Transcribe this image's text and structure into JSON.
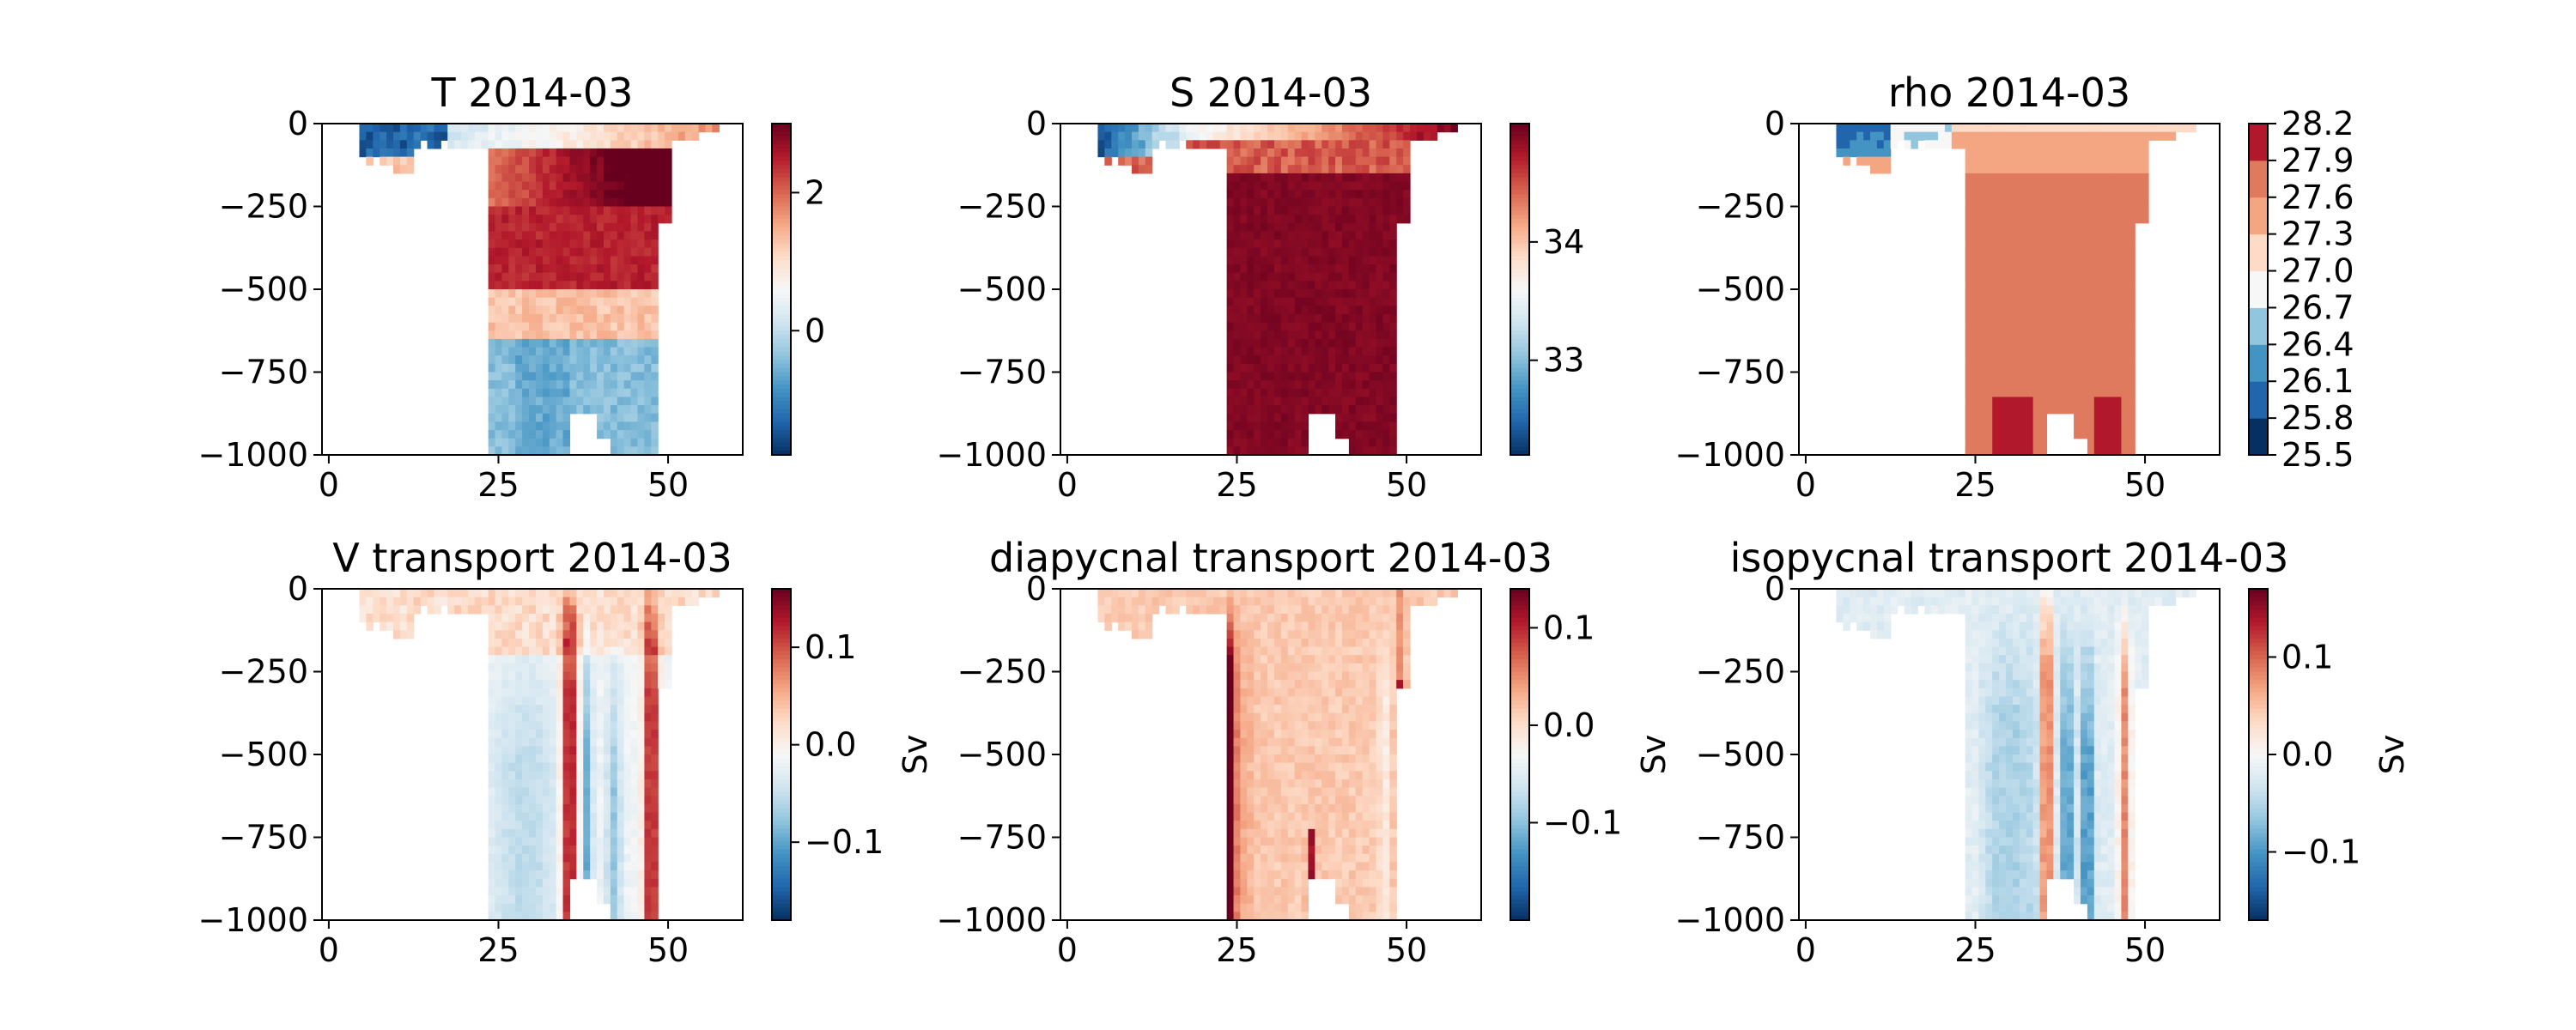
{
  "figure": {
    "background": "#ffffff"
  },
  "chart_data": [
    {
      "type": "heatmap",
      "title": "T 2014-03",
      "xlabel": "",
      "ylabel": "",
      "xlim": [
        -1,
        61
      ],
      "ylim": [
        -1000,
        0
      ],
      "xticks": [
        0,
        25,
        50
      ],
      "yticks": [
        0,
        -250,
        -500,
        -750,
        -1000
      ],
      "xtick_labels": [
        "0",
        "25",
        "50"
      ],
      "ytick_labels": [
        "0",
        "−250",
        "−500",
        "−750",
        "−1000"
      ],
      "colorbar": {
        "min": -1.8,
        "max": 3.0,
        "ticks": [
          0,
          2
        ],
        "tick_labels": [
          "0",
          "2"
        ],
        "label": "",
        "levels": null
      },
      "field": {
        "kind": "T",
        "x_start": 5,
        "x_end": 57
      }
    },
    {
      "type": "heatmap",
      "title": "S 2014-03",
      "xlabel": "",
      "ylabel": "",
      "xlim": [
        -1,
        61
      ],
      "ylim": [
        -1000,
        0
      ],
      "xticks": [
        0,
        25,
        50
      ],
      "yticks": [
        0,
        -250,
        -500,
        -750,
        -1000
      ],
      "xtick_labels": [
        "0",
        "25",
        "50"
      ],
      "ytick_labels": [
        "0",
        "−250",
        "−500",
        "−750",
        "−1000"
      ],
      "colorbar": {
        "min": 32.2,
        "max": 35.0,
        "ticks": [
          33,
          34
        ],
        "tick_labels": [
          "33",
          "34"
        ],
        "label": "",
        "levels": null
      },
      "field": {
        "kind": "S",
        "x_start": 5,
        "x_end": 57
      }
    },
    {
      "type": "heatmap",
      "title": "rho 2014-03",
      "xlabel": "",
      "ylabel": "",
      "xlim": [
        -1,
        61
      ],
      "ylim": [
        -1000,
        0
      ],
      "xticks": [
        0,
        25,
        50
      ],
      "yticks": [
        0,
        -250,
        -500,
        -750,
        -1000
      ],
      "xtick_labels": [
        "0",
        "25",
        "50"
      ],
      "ytick_labels": [
        "0",
        "−250",
        "−500",
        "−750",
        "−1000"
      ],
      "colorbar": {
        "min": 25.5,
        "max": 28.2,
        "ticks": [
          25.5,
          25.8,
          26.1,
          26.4,
          26.7,
          27.0,
          27.3,
          27.6,
          27.9,
          28.2
        ],
        "tick_labels": [
          "25.5",
          "25.8",
          "26.1",
          "26.4",
          "26.7",
          "27.0",
          "27.3",
          "27.6",
          "27.9",
          "28.2"
        ],
        "label": "",
        "levels": [
          "#053061",
          "#2166ac",
          "#4393c3",
          "#92c5de",
          "#f7f7f7",
          "#fddbc7",
          "#f4a582",
          "#e07a5f",
          "#b2182b"
        ]
      },
      "field": {
        "kind": "rho",
        "x_start": 5,
        "x_end": 57
      }
    },
    {
      "type": "heatmap",
      "title": "V transport 2014-03",
      "xlabel": "",
      "ylabel": "",
      "xlim": [
        -1,
        61
      ],
      "ylim": [
        -1000,
        0
      ],
      "xticks": [
        0,
        25,
        50
      ],
      "yticks": [
        0,
        -250,
        -500,
        -750,
        -1000
      ],
      "xtick_labels": [
        "0",
        "25",
        "50"
      ],
      "ytick_labels": [
        "0",
        "−250",
        "−500",
        "−750",
        "−1000"
      ],
      "colorbar": {
        "min": -0.18,
        "max": 0.16,
        "ticks": [
          -0.1,
          0.0,
          0.1
        ],
        "tick_labels": [
          "−0.1",
          "0.0",
          "0.1"
        ],
        "label": "Sv",
        "levels": null
      },
      "field": {
        "kind": "V",
        "x_start": 5,
        "x_end": 57
      }
    },
    {
      "type": "heatmap",
      "title": "diapycnal transport 2014-03",
      "xlabel": "",
      "ylabel": "",
      "xlim": [
        -1,
        61
      ],
      "ylim": [
        -1000,
        0
      ],
      "xticks": [
        0,
        25,
        50
      ],
      "yticks": [
        0,
        -250,
        -500,
        -750,
        -1000
      ],
      "xtick_labels": [
        "0",
        "25",
        "50"
      ],
      "ytick_labels": [
        "0",
        "−250",
        "−500",
        "−750",
        "−1000"
      ],
      "colorbar": {
        "min": -0.2,
        "max": 0.14,
        "ticks": [
          -0.1,
          0.0,
          0.1
        ],
        "tick_labels": [
          "−0.1",
          "0.0",
          "0.1"
        ],
        "label": "Sv",
        "levels": null
      },
      "field": {
        "kind": "dia",
        "x_start": 5,
        "x_end": 57
      }
    },
    {
      "type": "heatmap",
      "title": "isopycnal transport 2014-03",
      "xlabel": "",
      "ylabel": "",
      "xlim": [
        -1,
        61
      ],
      "ylim": [
        -1000,
        0
      ],
      "xticks": [
        0,
        25,
        50
      ],
      "yticks": [
        0,
        -250,
        -500,
        -750,
        -1000
      ],
      "xtick_labels": [
        "0",
        "25",
        "50"
      ],
      "ytick_labels": [
        "0",
        "−250",
        "−500",
        "−750",
        "−1000"
      ],
      "colorbar": {
        "min": -0.17,
        "max": 0.17,
        "ticks": [
          -0.1,
          0.0,
          0.1
        ],
        "tick_labels": [
          "−0.1",
          "0.0",
          "0.1"
        ],
        "label": "Sv",
        "levels": null
      },
      "field": {
        "kind": "iso",
        "x_start": 5,
        "x_end": 57
      }
    }
  ]
}
